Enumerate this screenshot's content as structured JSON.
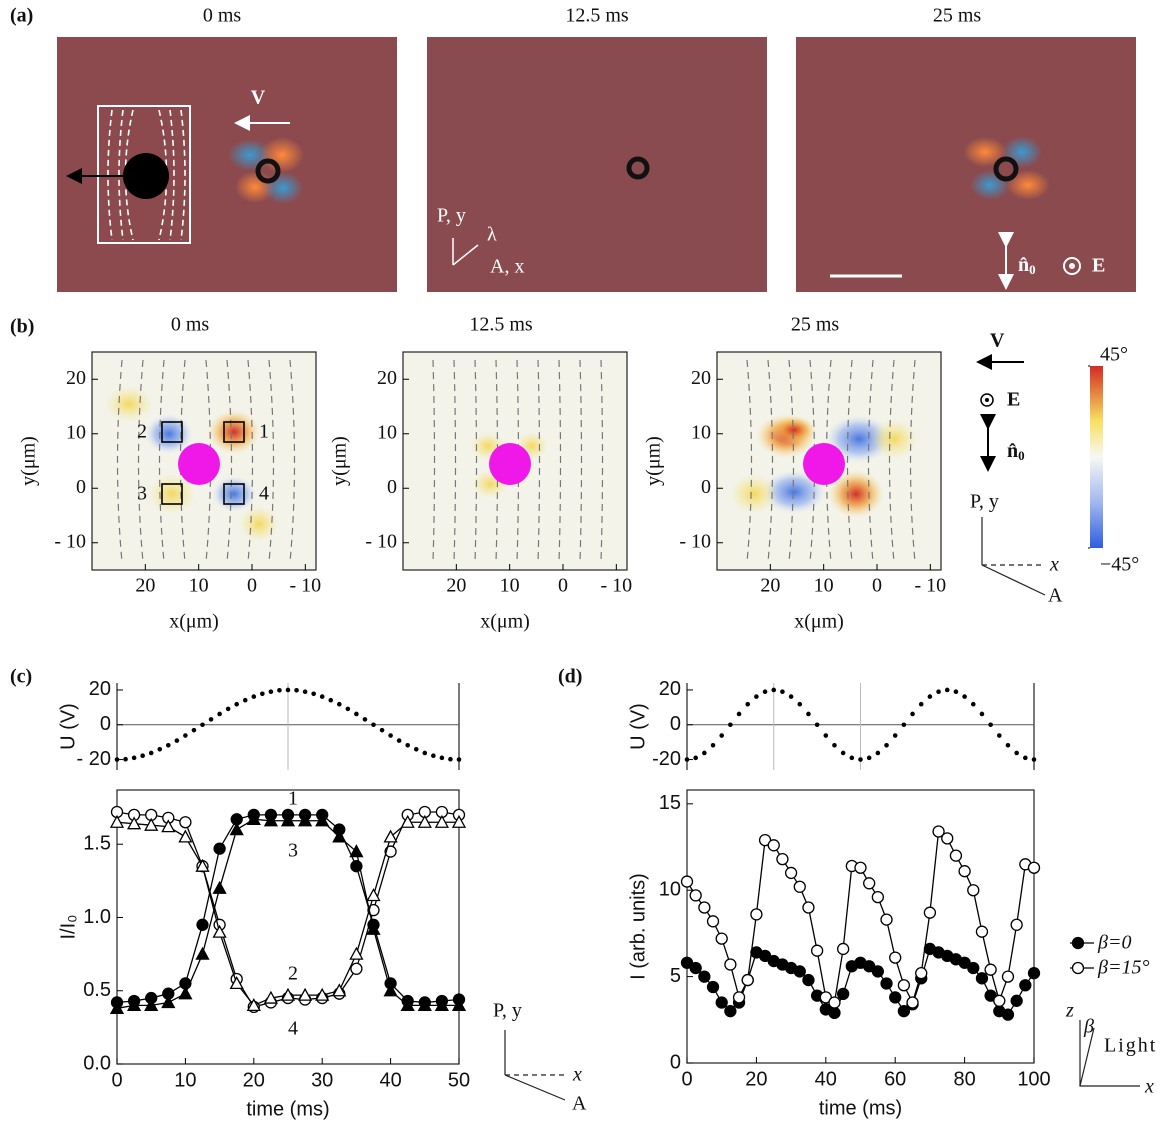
{
  "figure": {
    "panel_labels": [
      "(a)",
      "(b)",
      "(c)",
      "(d)"
    ],
    "a_titles": [
      "0 ms",
      "12.5  ms",
      "25 ms"
    ],
    "velocity": "V",
    "electric": "E",
    "director": [
      "n̂",
      "0"
    ],
    "pol_a": [
      "P, y",
      "λ",
      "A, x"
    ],
    "pol_b": [
      "P, y",
      "x",
      "A"
    ],
    "pol_c": [
      "P, y",
      "x",
      "A"
    ],
    "light": [
      "z",
      "β",
      "Light",
      "x"
    ],
    "colorbar_lim": [
      -45,
      45
    ],
    "colorbar_ticks": [
      {
        "value": 45,
        "label": "45°"
      },
      {
        "value": -45,
        "label": "−45°"
      }
    ]
  },
  "chart_data": [
    {
      "type": "heatmap",
      "title": "0 ms",
      "xlabel": "x(μm)",
      "ylabel": "y(μm)",
      "xlim": [
        30,
        -12
      ],
      "ylim": [
        -15,
        25
      ],
      "xticks": [
        20,
        10,
        0,
        {
          "value": -10,
          "label": "- 10"
        }
      ],
      "yticks": [
        20,
        10,
        0,
        {
          "value": -10,
          "label": "- 10"
        }
      ],
      "roi_labels": [
        "1",
        "2",
        "3",
        "4"
      ]
    },
    {
      "type": "heatmap",
      "title": "12.5  ms",
      "xlabel": "x(μm)",
      "ylabel": "y(μm)",
      "xlim": [
        30,
        -12
      ],
      "ylim": [
        -15,
        25
      ],
      "xticks": [
        20,
        10,
        0,
        {
          "value": -10,
          "label": "- 10"
        }
      ],
      "yticks": [
        20,
        10,
        0,
        {
          "value": -10,
          "label": "- 10"
        }
      ]
    },
    {
      "type": "heatmap",
      "title": "25 ms",
      "xlabel": "x(μm)",
      "ylabel": "y(μm)",
      "xlim": [
        30,
        -12
      ],
      "ylim": [
        -15,
        25
      ],
      "xticks": [
        20,
        10,
        0,
        {
          "value": -10,
          "label": "- 10"
        }
      ],
      "yticks": [
        20,
        10,
        0,
        {
          "value": -10,
          "label": "- 10"
        }
      ]
    },
    {
      "type": "scatter",
      "ylabel": "U (V)",
      "xlim": [
        0,
        50
      ],
      "ylim": [
        -26,
        24
      ],
      "yticks": [
        20,
        0,
        {
          "value": -20,
          "label": "- 20"
        }
      ],
      "vlines": [
        25
      ],
      "x": [
        0,
        1.25,
        2.5,
        3.75,
        5,
        6.25,
        7.5,
        8.75,
        10,
        11.25,
        12.5,
        13.75,
        15,
        16.25,
        17.5,
        18.75,
        20,
        21.25,
        22.5,
        23.75,
        25,
        26.25,
        27.5,
        28.75,
        30,
        31.25,
        32.5,
        33.75,
        35,
        36.25,
        37.5,
        38.75,
        40,
        41.25,
        42.5,
        43.75,
        45,
        46.25,
        47.5,
        48.75,
        50
      ],
      "values": [
        -20,
        -19.8,
        -19.0,
        -17.8,
        -16.2,
        -14.1,
        -11.8,
        -9.1,
        -6.2,
        -3.1,
        0,
        3.1,
        6.2,
        9.1,
        11.8,
        14.1,
        16.2,
        17.8,
        19.0,
        19.8,
        20,
        19.8,
        19.0,
        17.8,
        16.2,
        14.1,
        11.8,
        9.1,
        6.2,
        3.1,
        0,
        -3.1,
        -6.2,
        -9.1,
        -11.8,
        -14.1,
        -16.2,
        -17.8,
        -19.0,
        -19.8,
        -20
      ]
    },
    {
      "type": "line",
      "xlabel": "time (ms)",
      "ylabel": "I/I₀",
      "xlim": [
        0,
        50
      ],
      "ylim": [
        0,
        1.87
      ],
      "xticks": [
        0,
        10,
        20,
        30,
        40,
        50
      ],
      "yticks": [
        {
          "value": 0,
          "label": "0.0"
        },
        0.5,
        {
          "value": 1,
          "label": "1.0"
        },
        1.5
      ],
      "x": [
        0,
        2.5,
        5,
        7.5,
        10,
        12.5,
        15,
        17.5,
        20,
        22.5,
        25,
        27.5,
        30,
        32.5,
        35,
        37.5,
        40,
        42.5,
        45,
        47.5,
        50
      ],
      "series": [
        {
          "name": "1",
          "marker": "filled-circle",
          "values": [
            0.42,
            0.43,
            0.45,
            0.48,
            0.55,
            0.95,
            1.47,
            1.67,
            1.7,
            1.7,
            1.7,
            1.7,
            1.7,
            1.6,
            1.35,
            0.95,
            0.55,
            0.43,
            0.42,
            0.43,
            0.44
          ]
        },
        {
          "name": "2",
          "marker": "open-circle",
          "values": [
            1.72,
            1.7,
            1.7,
            1.68,
            1.65,
            1.35,
            0.95,
            0.58,
            0.39,
            0.42,
            0.45,
            0.44,
            0.45,
            0.48,
            0.65,
            1.05,
            1.45,
            1.7,
            1.72,
            1.72,
            1.7
          ]
        },
        {
          "name": "3",
          "marker": "filled-triangle",
          "values": [
            0.38,
            0.4,
            0.4,
            0.42,
            0.48,
            0.75,
            1.2,
            1.6,
            1.67,
            1.66,
            1.66,
            1.66,
            1.66,
            1.55,
            1.45,
            0.92,
            0.5,
            0.4,
            0.4,
            0.4,
            0.4
          ]
        },
        {
          "name": "4",
          "marker": "open-triangle",
          "values": [
            1.65,
            1.64,
            1.63,
            1.62,
            1.55,
            1.35,
            0.9,
            0.55,
            0.4,
            0.45,
            0.47,
            0.47,
            0.47,
            0.5,
            0.75,
            1.15,
            1.55,
            1.65,
            1.65,
            1.65,
            1.65
          ]
        }
      ]
    },
    {
      "type": "scatter",
      "ylabel": "U (V)",
      "xlim": [
        0,
        100
      ],
      "ylim": [
        -26,
        24
      ],
      "yticks": [
        20,
        0,
        {
          "value": -20,
          "label": "-20"
        }
      ],
      "vlines": [
        25,
        50
      ],
      "x": [
        0,
        2.5,
        5,
        7.5,
        10,
        12.5,
        15,
        17.5,
        20,
        22.5,
        25,
        27.5,
        30,
        32.5,
        35,
        37.5,
        40,
        42.5,
        45,
        47.5,
        50,
        52.5,
        55,
        57.5,
        60,
        62.5,
        65,
        67.5,
        70,
        72.5,
        75,
        77.5,
        80,
        82.5,
        85,
        87.5,
        90,
        92.5,
        95,
        97.5,
        100
      ],
      "values": [
        -20,
        -19.0,
        -16.2,
        -11.8,
        -6.2,
        0,
        6.2,
        11.8,
        16.2,
        19.0,
        20,
        19.0,
        16.2,
        11.8,
        6.2,
        0,
        -6.2,
        -11.8,
        -16.2,
        -19.0,
        -20,
        -19.0,
        -16.2,
        -11.8,
        -6.2,
        0,
        6.2,
        11.8,
        16.2,
        19.0,
        20,
        19.0,
        16.2,
        11.8,
        6.2,
        0,
        -6.2,
        -11.8,
        -16.2,
        -19.0,
        -20
      ]
    },
    {
      "type": "line",
      "xlabel": "time (ms)",
      "ylabel": "I (arb. units)",
      "xlim": [
        0,
        100
      ],
      "ylim": [
        0,
        15.8
      ],
      "xticks": [
        0,
        20,
        40,
        60,
        80,
        100
      ],
      "yticks": [
        0,
        5,
        10,
        15
      ],
      "legend": "right",
      "x": [
        0,
        2.5,
        5,
        7.5,
        10,
        12.5,
        15,
        17.5,
        20,
        22.5,
        25,
        27.5,
        30,
        32.5,
        35,
        37.5,
        40,
        42.5,
        45,
        47.5,
        50,
        52.5,
        55,
        57.5,
        60,
        62.5,
        65,
        67.5,
        70,
        72.5,
        75,
        77.5,
        80,
        82.5,
        85,
        87.5,
        90,
        92.5,
        95,
        97.5,
        100
      ],
      "series": [
        {
          "name": "β=0",
          "marker": "filled-circle",
          "values": [
            5.8,
            5.5,
            5.0,
            4.4,
            3.5,
            3.0,
            3.5,
            4.8,
            6.4,
            6.2,
            5.9,
            5.7,
            5.5,
            5.3,
            4.8,
            3.9,
            3.1,
            2.9,
            4.0,
            5.6,
            5.8,
            5.6,
            5.3,
            4.6,
            3.8,
            3.0,
            3.4,
            4.9,
            6.6,
            6.4,
            6.2,
            6.0,
            5.8,
            5.5,
            4.9,
            3.9,
            3.0,
            2.8,
            3.6,
            4.5,
            5.2
          ]
        },
        {
          "name": "β=15°",
          "marker": "open-circle",
          "values": [
            10.5,
            9.7,
            9.0,
            8.2,
            7.2,
            5.7,
            3.8,
            4.8,
            8.6,
            12.9,
            12.6,
            11.8,
            11.0,
            10.2,
            9.0,
            6.5,
            3.8,
            3.5,
            6.6,
            11.4,
            11.3,
            10.4,
            9.6,
            8.3,
            6.1,
            4.5,
            3.5,
            5.2,
            8.7,
            13.4,
            13.0,
            12.0,
            11.1,
            10.0,
            7.6,
            5.4,
            3.6,
            5.0,
            8.0,
            11.5,
            11.3
          ]
        }
      ]
    }
  ]
}
